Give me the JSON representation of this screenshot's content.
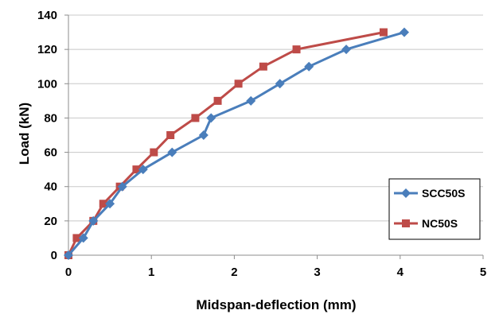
{
  "chart_data": {
    "type": "line",
    "xlabel": "Midspan-deflection (mm)",
    "ylabel": "Load (kN)",
    "xlim": [
      0,
      5
    ],
    "ylim": [
      0,
      140
    ],
    "xticks": [
      0,
      1,
      2,
      3,
      4,
      5
    ],
    "yticks": [
      0,
      20,
      40,
      60,
      80,
      100,
      120,
      140
    ],
    "grid": "horizontal",
    "legend_position": "bottom-right",
    "series": [
      {
        "name": "SCC50S",
        "color": "#4a7ebb",
        "marker": "diamond",
        "points": [
          [
            0,
            0
          ],
          [
            0.18,
            10
          ],
          [
            0.3,
            20
          ],
          [
            0.5,
            30
          ],
          [
            0.65,
            40
          ],
          [
            0.9,
            50
          ],
          [
            1.25,
            60
          ],
          [
            1.63,
            70
          ],
          [
            1.72,
            80
          ],
          [
            2.2,
            90
          ],
          [
            2.55,
            100
          ],
          [
            2.9,
            110
          ],
          [
            3.35,
            120
          ],
          [
            4.05,
            130
          ]
        ]
      },
      {
        "name": "NC50S",
        "color": "#be4b48",
        "marker": "square",
        "points": [
          [
            0,
            0
          ],
          [
            0.1,
            10
          ],
          [
            0.3,
            20
          ],
          [
            0.42,
            30
          ],
          [
            0.62,
            40
          ],
          [
            0.82,
            50
          ],
          [
            1.03,
            60
          ],
          [
            1.23,
            70
          ],
          [
            1.53,
            80
          ],
          [
            1.8,
            90
          ],
          [
            2.05,
            100
          ],
          [
            2.35,
            110
          ],
          [
            2.75,
            120
          ],
          [
            3.8,
            130
          ]
        ]
      }
    ]
  }
}
